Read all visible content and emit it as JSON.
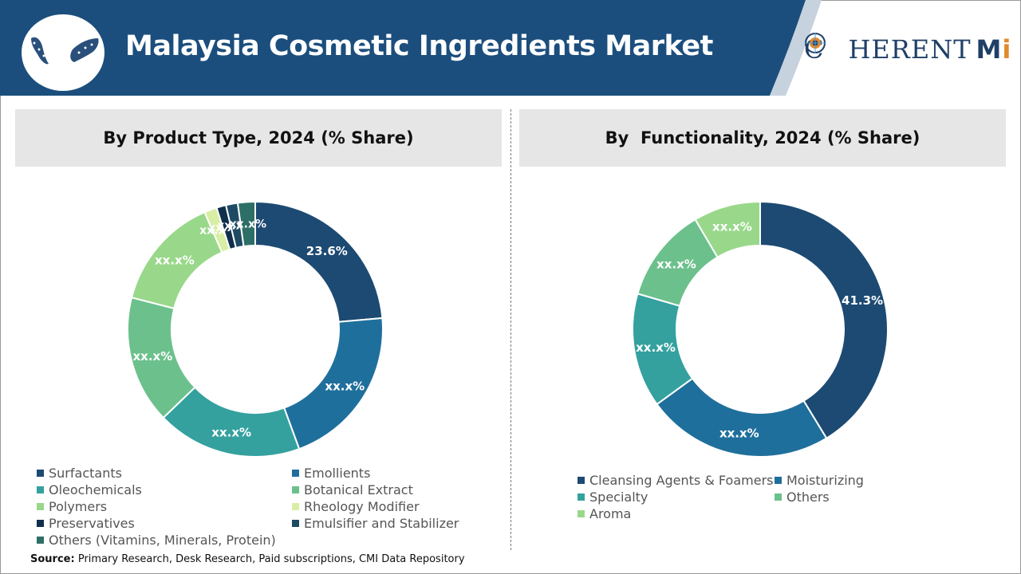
{
  "header": {
    "title": "Malaysia Cosmetic Ingredients Market",
    "logo_text_main": "C",
    "logo_text_rest": "HERENT",
    "logo_text_mi": "M",
    "logo_text_i": "i",
    "colors": {
      "band": "#1b4e7d",
      "accent": "#ffffff"
    }
  },
  "map_icon": "malaysia-map-icon",
  "globe_icon": "globe-icon",
  "chart_data": [
    {
      "type": "pie",
      "title": "By Product Type, 2024 (% Share)",
      "donut": true,
      "categories": [
        "Surfactants",
        "Emollients",
        "Oleochemicals",
        "Botanical Extract",
        "Polymers",
        "Rheology Modifier",
        "Preservatives",
        "Emulsifier and Stabilizer",
        "Others (Vitamins, Minerals, Protein)"
      ],
      "values": [
        23.6,
        20.8,
        18.4,
        16.2,
        14.5,
        1.6,
        1.2,
        1.5,
        2.2
      ],
      "labels": [
        "23.6%",
        "xx.x%",
        "xx.x%",
        "xx.x%",
        "xx.x%",
        "xx.x%",
        "xx.x%",
        "xx.x%",
        "xx.x%"
      ],
      "colors": [
        "#1c4a72",
        "#1f6f9c",
        "#34a19f",
        "#6cc08c",
        "#99d88a",
        "#d8eea4",
        "#0f2f4c",
        "#1e4a63",
        "#2d6f66"
      ],
      "legend": "bottom"
    },
    {
      "type": "pie",
      "title": "By  Functionality, 2024 (% Share)",
      "donut": true,
      "categories": [
        "Cleansing Agents & Foamers",
        "Moisturizing",
        "Specialty",
        "Others",
        "Aroma"
      ],
      "values": [
        41.3,
        23.7,
        14.5,
        12.0,
        8.5
      ],
      "labels": [
        "41.3%",
        "xx.x%",
        "xx.x%",
        "xx.x%",
        "xx.x%"
      ],
      "colors": [
        "#1c4a72",
        "#1f6f9c",
        "#34a19f",
        "#6cc08c",
        "#99d88a"
      ],
      "legend": "bottom"
    }
  ],
  "source": {
    "label": "Source:",
    "text": "Primary Research, Desk Research, Paid subscriptions, CMI Data Repository"
  }
}
